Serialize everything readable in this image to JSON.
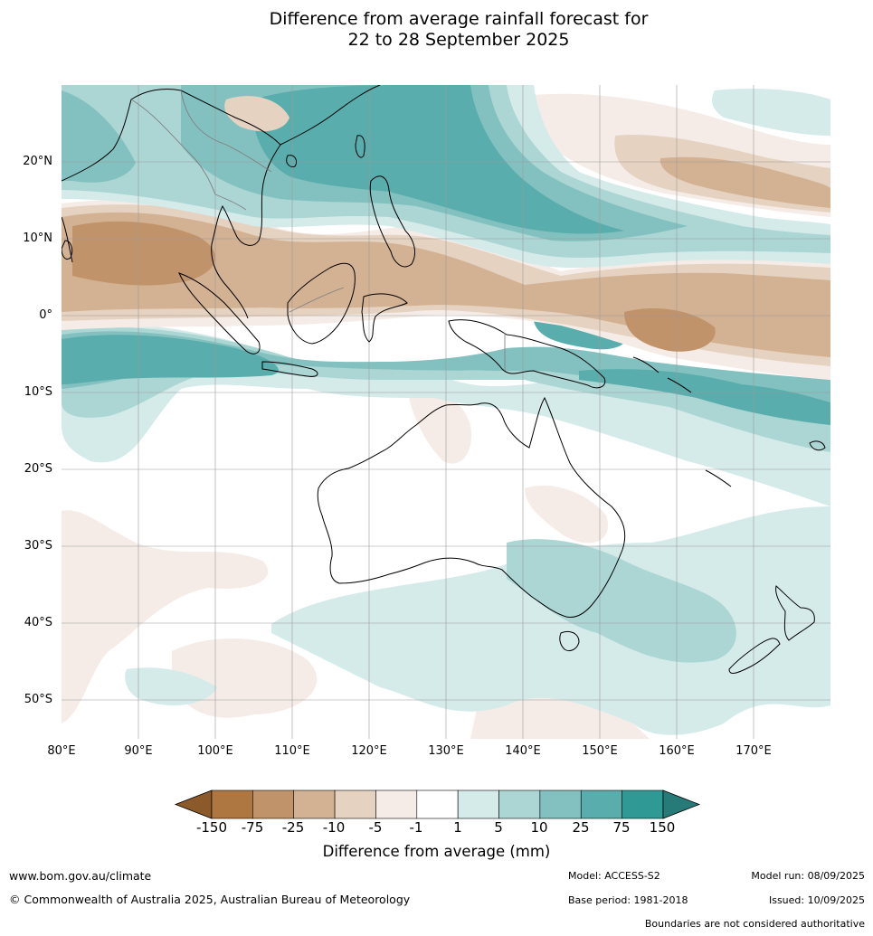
{
  "title": {
    "line1": "Difference from average rainfall forecast for",
    "line2": "22 to 28 September 2025"
  },
  "map": {
    "lat_labels": [
      "20°N",
      "10°N",
      "0°",
      "10°S",
      "20°S",
      "30°S",
      "40°S",
      "50°S"
    ],
    "lon_labels": [
      "80°E",
      "90°E",
      "100°E",
      "110°E",
      "120°E",
      "130°E",
      "140°E",
      "150°E",
      "160°E",
      "170°E"
    ],
    "extent": {
      "lon_min": 80,
      "lon_max": 180,
      "lat_min": -55,
      "lat_max": 30
    },
    "colors": {
      "land_outline": "#000000",
      "borders": "#808080",
      "grid": "#9a9a9a"
    }
  },
  "colorbar": {
    "label": "Difference from average (mm)",
    "ticks": [
      "-150",
      "-75",
      "-25",
      "-10",
      "-5",
      "-1",
      "1",
      "5",
      "10",
      "25",
      "75",
      "150"
    ],
    "colors": [
      "#8c5a2a",
      "#ae7640",
      "#c1936a",
      "#d3b193",
      "#e6d2c0",
      "#f5ece7",
      "#ffffff",
      "#d5ebea",
      "#acd6d4",
      "#83c1c0",
      "#59adac",
      "#2f9996",
      "#267a78"
    ]
  },
  "footer": {
    "website": "www.bom.gov.au/climate",
    "copyright": "© Commonwealth of Australia 2025, Australian Bureau of Meteorology",
    "model": "Model: ACCESS-S2",
    "base_period": "Base period: 1981-2018",
    "model_run": "Model run: 08/09/2025",
    "issued": "Issued: 10/09/2025",
    "disclaimer": "Boundaries are not considered authoritative"
  }
}
